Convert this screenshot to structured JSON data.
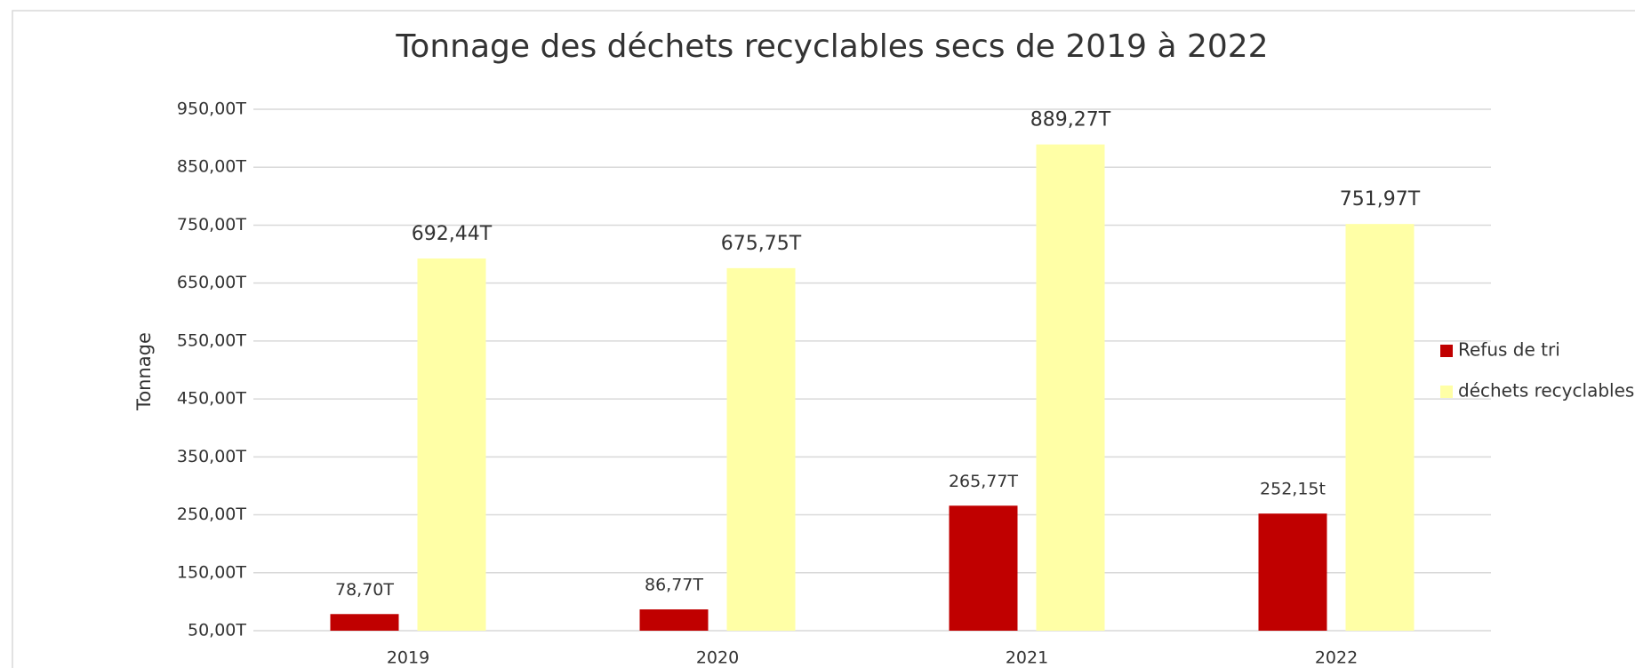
{
  "chart_data": {
    "type": "bar",
    "title": "Tonnage des déchets recyclables secs de 2019 à 2022",
    "y_label": "Tonnage",
    "categories": [
      "2019",
      "2020",
      "2021",
      "2022"
    ],
    "series": [
      {
        "name": "Refus de tri",
        "color": "#c00000",
        "values": [
          78.7,
          86.77,
          265.77,
          252.15
        ],
        "value_labels": [
          "78,70T",
          "86,77T",
          "265,77T",
          "252,15t"
        ]
      },
      {
        "name": "déchets recyclables",
        "color": "#ffffa6",
        "values": [
          692.44,
          675.75,
          889.27,
          751.97
        ],
        "value_labels": [
          "692,44T",
          "675,75T",
          "889,27T",
          "751,97T"
        ]
      }
    ],
    "ylim": [
      50,
      950
    ],
    "yticks": [
      {
        "value": 50,
        "label": "50,00T"
      },
      {
        "value": 150,
        "label": "150,00T"
      },
      {
        "value": 250,
        "label": "250,00T"
      },
      {
        "value": 350,
        "label": "350,00T"
      },
      {
        "value": 450,
        "label": "450,00T"
      },
      {
        "value": 550,
        "label": "550,00T"
      },
      {
        "value": 650,
        "label": "650,00T"
      },
      {
        "value": 750,
        "label": "750,00T"
      },
      {
        "value": 850,
        "label": "850,00T"
      },
      {
        "value": 950,
        "label": "950,00T"
      }
    ],
    "grid": true,
    "legend": "right"
  }
}
